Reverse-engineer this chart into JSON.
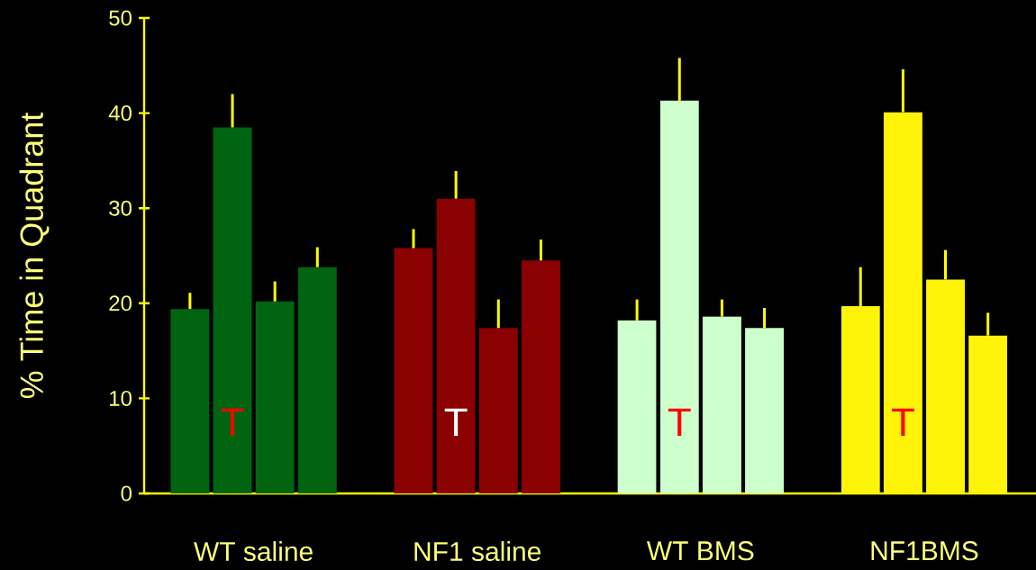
{
  "chart_data": {
    "type": "bar",
    "ylabel": "% Time in Quadrant",
    "categories": [
      "WT saline",
      "NF1 saline",
      "WT BMS",
      "NF1BMS"
    ],
    "series": [
      {
        "colors": [
          "#006411",
          "#8b0000",
          "#ccffcc",
          "#fff30a"
        ],
        "values": [
          19.4,
          25.8,
          18.2,
          19.7
        ],
        "errors": [
          [
            19.4,
            21.1
          ],
          [
            25.8,
            27.8
          ],
          [
            18.2,
            20.4
          ],
          [
            19.7,
            23.8
          ]
        ]
      },
      {
        "colors": [
          "#006411",
          "#8b0000",
          "#ccffcc",
          "#fff30a"
        ],
        "values": [
          38.5,
          31.0,
          41.3,
          40.1
        ],
        "errors": [
          [
            38.5,
            42.0
          ],
          [
            31.0,
            33.9
          ],
          [
            41.3,
            45.8
          ],
          [
            40.1,
            44.6
          ]
        ]
      },
      {
        "colors": [
          "#006411",
          "#8b0000",
          "#ccffcc",
          "#fff30a"
        ],
        "values": [
          20.2,
          17.4,
          18.6,
          22.5
        ],
        "errors": [
          [
            20.2,
            22.3
          ],
          [
            17.4,
            20.4
          ],
          [
            18.6,
            20.4
          ],
          [
            22.5,
            25.6
          ]
        ]
      },
      {
        "colors": [
          "#006411",
          "#8b0000",
          "#ccffcc",
          "#fff30a"
        ],
        "values": [
          23.8,
          24.5,
          17.4,
          16.6
        ],
        "errors": [
          [
            23.8,
            25.9
          ],
          [
            24.5,
            26.7
          ],
          [
            17.4,
            19.5
          ],
          [
            16.6,
            19.0
          ]
        ]
      }
    ],
    "ylim": [
      0,
      50
    ],
    "yticks": [
      0,
      10,
      20,
      30,
      40,
      50
    ],
    "annotations": [
      {
        "text": "T",
        "x": "WT saline",
        "y": 7.5
      },
      {
        "text": "T",
        "x": "NF1 saline",
        "y": 7.5
      },
      {
        "text": "T",
        "x": "WT BMS",
        "y": 7.5
      },
      {
        "text": "T",
        "x": "NF1BMS",
        "y": 7.5
      }
    ]
  }
}
